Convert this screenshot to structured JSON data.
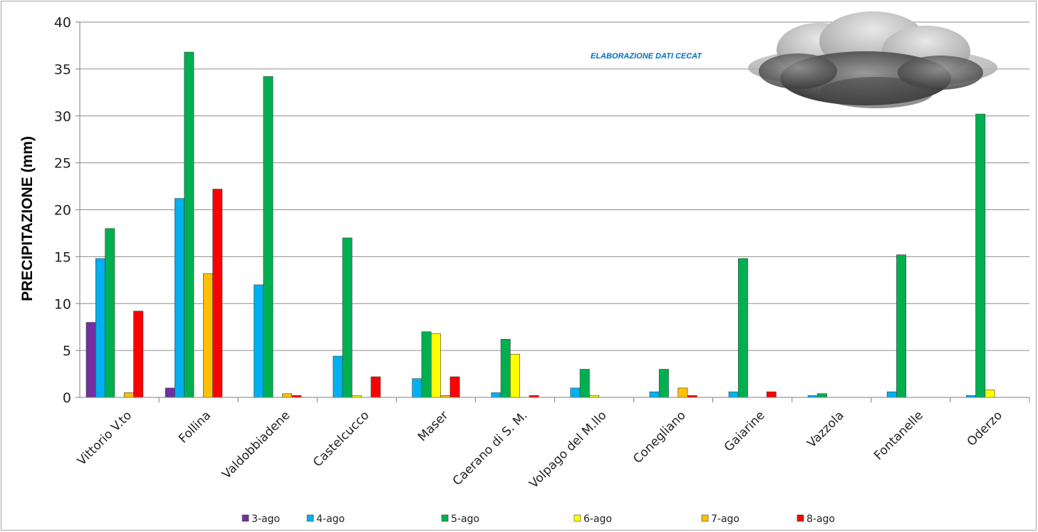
{
  "chart_data": {
    "type": "bar",
    "ylabel": "PRECIPITAZIONE (mm)",
    "annotation": "ELABORAZIONE DATI CECAT",
    "ylim": [
      0,
      40
    ],
    "yticks": [
      "0",
      "5",
      "10",
      "15",
      "20",
      "25",
      "30",
      "35",
      "40"
    ],
    "grid": true,
    "legend_position": "bottom",
    "categories": [
      "Vittorio V.to",
      "Follina",
      "Valdobbiadene",
      "Castelcucco",
      "Maser",
      "Caerano di S. M.",
      "Volpago del M.llo",
      "Conegliano",
      "Gaiarine",
      "Vazzola",
      "Fontanelle",
      "Oderzo"
    ],
    "series": [
      {
        "name": "3-ago",
        "color": "#7030a0",
        "values": [
          8.0,
          1.0,
          0,
          0,
          0,
          0,
          0,
          0,
          0,
          0,
          0,
          0
        ]
      },
      {
        "name": "4-ago",
        "color": "#00b0f0",
        "values": [
          14.8,
          21.2,
          12.0,
          4.4,
          2.0,
          0.5,
          1.0,
          0.6,
          0.6,
          0.2,
          0.6,
          0.2
        ]
      },
      {
        "name": "5-ago",
        "color": "#00b050",
        "values": [
          18.0,
          36.8,
          34.2,
          17.0,
          7.0,
          6.2,
          3.0,
          3.0,
          14.8,
          0.4,
          15.2,
          30.2
        ]
      },
      {
        "name": "6-ago",
        "color": "#ffff00",
        "values": [
          0,
          0,
          0,
          0.2,
          6.8,
          4.6,
          0.2,
          0,
          0,
          0,
          0,
          0.8
        ]
      },
      {
        "name": "7-ago",
        "color": "#ffc000",
        "values": [
          0.5,
          13.2,
          0.4,
          0,
          0.2,
          0,
          0,
          1.0,
          0,
          0,
          0,
          0
        ]
      },
      {
        "name": "8-ago",
        "color": "#ff0000",
        "values": [
          9.2,
          22.2,
          0.2,
          2.2,
          2.2,
          0.2,
          0,
          0.2,
          0.6,
          0,
          0,
          0
        ]
      }
    ]
  }
}
